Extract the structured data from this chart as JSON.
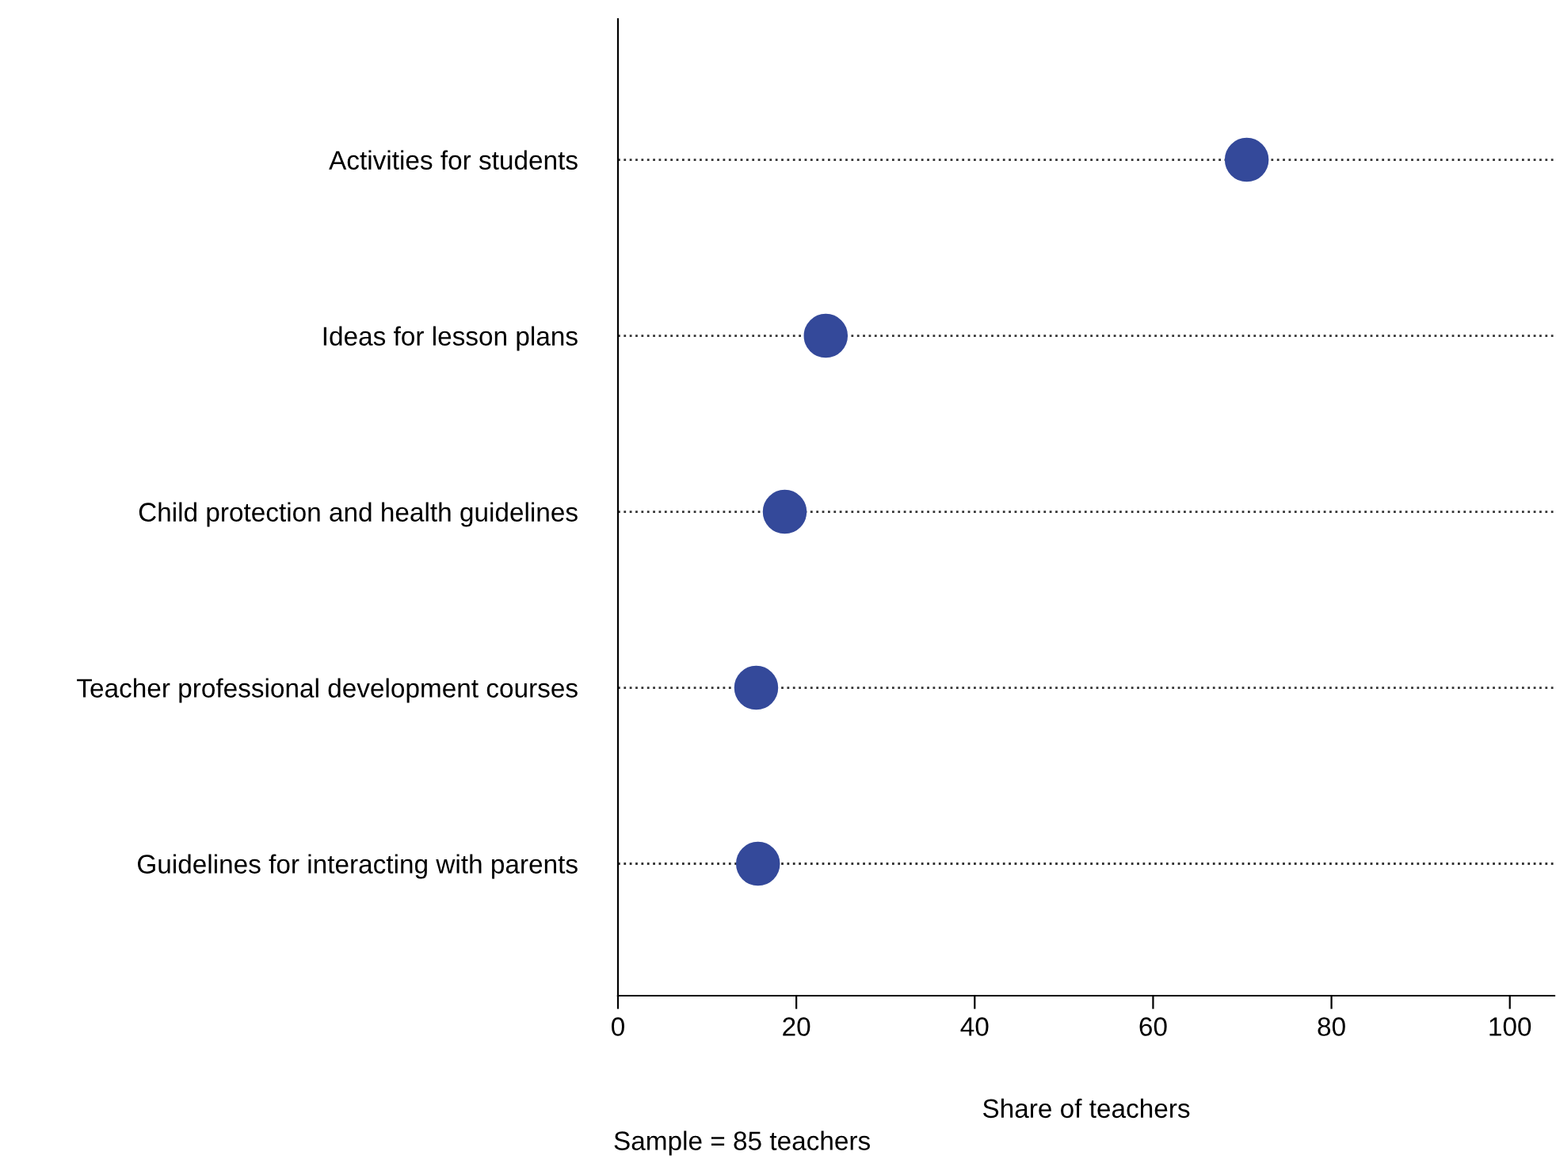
{
  "chart_data": {
    "type": "scatter",
    "categories": [
      "Activities for students",
      "Ideas for lesson plans",
      "Child protection and health guidelines",
      "Teacher professional development courses",
      "Guidelines for interacting with parents"
    ],
    "orientation": "horizontal",
    "values": [
      70.5,
      23.3,
      18.7,
      15.5,
      15.7
    ],
    "color": "#34499a",
    "marker": "circle",
    "xlabel": "Share of teachers",
    "xlim": [
      0,
      105
    ],
    "xticks": [
      0,
      20,
      40,
      60,
      80,
      100
    ],
    "grid": "y",
    "line_style": "dotted",
    "annotations": [
      "Sample = 85 teachers"
    ]
  }
}
